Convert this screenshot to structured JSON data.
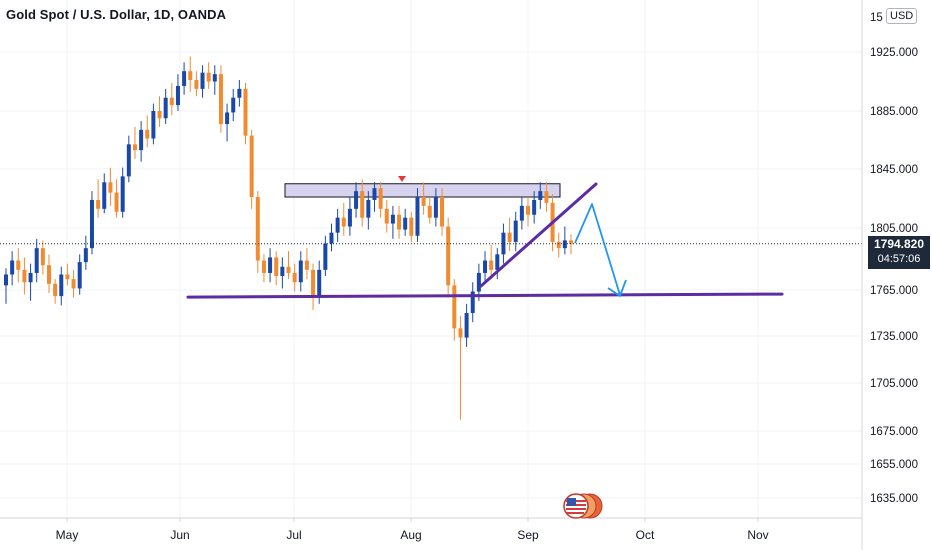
{
  "header": {
    "title": "Gold Spot / U.S. Dollar, 1D, OANDA",
    "currency": "USD",
    "top_price_partial": "15"
  },
  "price_tag": {
    "price": "1794.820",
    "countdown": "04:57:06"
  },
  "colors": {
    "up": "#1a48a8",
    "down": "#f28b30",
    "trendline": "#5b2ca3",
    "projection": "#2196f3",
    "zone_fill": "#d7d3ef",
    "price_line": "#1e2a3a",
    "tag_bg": "#1e2a3a"
  },
  "chart_data": {
    "type": "candlestick",
    "title": "Gold Spot / U.S. Dollar, 1D, OANDA",
    "y_axis": {
      "ticks": [
        "1925.000",
        "1885.000",
        "1845.000",
        "1805.000",
        "1765.000",
        "1735.000",
        "1705.000",
        "1675.000",
        "1655.000",
        "1635.000"
      ],
      "ylim": [
        1620,
        1960
      ],
      "position": "right"
    },
    "x_axis": {
      "ticks": [
        "May",
        "Jun",
        "Jul",
        "Aug",
        "Sep",
        "Oct",
        "Nov"
      ]
    },
    "last_price": 1794.82,
    "resistance_zone": {
      "low": 1826,
      "high": 1835,
      "from": "Jul",
      "to": "Sep"
    },
    "support_level": 1763,
    "rising_trendline": {
      "from_price": 1770,
      "to_price": 1835
    },
    "projection_path": [
      1795,
      1815,
      1763
    ],
    "ohlc": [
      [
        1768,
        1779,
        1756,
        1775
      ],
      [
        1775,
        1790,
        1768,
        1784
      ],
      [
        1784,
        1792,
        1770,
        1778
      ],
      [
        1778,
        1786,
        1762,
        1770
      ],
      [
        1770,
        1782,
        1758,
        1776
      ],
      [
        1776,
        1798,
        1770,
        1792
      ],
      [
        1792,
        1797,
        1775,
        1781
      ],
      [
        1781,
        1788,
        1763,
        1769
      ],
      [
        1769,
        1772,
        1756,
        1761
      ],
      [
        1761,
        1780,
        1755,
        1775
      ],
      [
        1775,
        1782,
        1768,
        1772
      ],
      [
        1772,
        1778,
        1760,
        1766
      ],
      [
        1766,
        1788,
        1762,
        1783
      ],
      [
        1783,
        1800,
        1778,
        1792
      ],
      [
        1792,
        1830,
        1788,
        1824
      ],
      [
        1824,
        1838,
        1812,
        1818
      ],
      [
        1818,
        1842,
        1815,
        1836
      ],
      [
        1836,
        1846,
        1820,
        1829
      ],
      [
        1829,
        1838,
        1812,
        1816
      ],
      [
        1816,
        1846,
        1812,
        1840
      ],
      [
        1840,
        1868,
        1836,
        1862
      ],
      [
        1862,
        1874,
        1852,
        1858
      ],
      [
        1858,
        1878,
        1850,
        1872
      ],
      [
        1872,
        1882,
        1860,
        1866
      ],
      [
        1866,
        1890,
        1862,
        1885
      ],
      [
        1885,
        1895,
        1874,
        1880
      ],
      [
        1880,
        1900,
        1876,
        1894
      ],
      [
        1894,
        1904,
        1882,
        1889
      ],
      [
        1889,
        1910,
        1885,
        1902
      ],
      [
        1902,
        1918,
        1896,
        1912
      ],
      [
        1912,
        1922,
        1898,
        1906
      ],
      [
        1906,
        1912,
        1895,
        1900
      ],
      [
        1900,
        1916,
        1894,
        1911
      ],
      [
        1911,
        1918,
        1900,
        1905
      ],
      [
        1905,
        1916,
        1896,
        1910
      ],
      [
        1910,
        1916,
        1870,
        1876
      ],
      [
        1876,
        1890,
        1864,
        1884
      ],
      [
        1884,
        1900,
        1878,
        1894
      ],
      [
        1894,
        1906,
        1888,
        1900
      ],
      [
        1900,
        1904,
        1862,
        1868
      ],
      [
        1868,
        1872,
        1818,
        1826
      ],
      [
        1826,
        1830,
        1776,
        1784
      ],
      [
        1784,
        1788,
        1770,
        1776
      ],
      [
        1776,
        1792,
        1770,
        1786
      ],
      [
        1786,
        1790,
        1768,
        1774
      ],
      [
        1774,
        1786,
        1766,
        1780
      ],
      [
        1780,
        1790,
        1772,
        1776
      ],
      [
        1776,
        1782,
        1764,
        1770
      ],
      [
        1770,
        1790,
        1764,
        1784
      ],
      [
        1784,
        1792,
        1772,
        1778
      ],
      [
        1778,
        1782,
        1752,
        1760
      ],
      [
        1760,
        1784,
        1756,
        1778
      ],
      [
        1778,
        1800,
        1774,
        1795
      ],
      [
        1795,
        1808,
        1790,
        1802
      ],
      [
        1802,
        1818,
        1796,
        1812
      ],
      [
        1812,
        1822,
        1800,
        1806
      ],
      [
        1806,
        1826,
        1800,
        1818
      ],
      [
        1818,
        1836,
        1812,
        1830
      ],
      [
        1830,
        1838,
        1806,
        1812
      ],
      [
        1812,
        1830,
        1804,
        1824
      ],
      [
        1824,
        1836,
        1816,
        1832
      ],
      [
        1832,
        1836,
        1812,
        1818
      ],
      [
        1818,
        1824,
        1802,
        1808
      ],
      [
        1808,
        1820,
        1798,
        1814
      ],
      [
        1814,
        1820,
        1798,
        1804
      ],
      [
        1804,
        1818,
        1800,
        1812
      ],
      [
        1812,
        1816,
        1796,
        1800
      ],
      [
        1800,
        1832,
        1796,
        1826
      ],
      [
        1826,
        1836,
        1814,
        1820
      ],
      [
        1820,
        1826,
        1808,
        1812
      ],
      [
        1812,
        1832,
        1806,
        1826
      ],
      [
        1826,
        1832,
        1800,
        1806
      ],
      [
        1806,
        1812,
        1760,
        1768
      ],
      [
        1768,
        1772,
        1732,
        1740
      ],
      [
        1740,
        1748,
        1682,
        1734
      ],
      [
        1734,
        1756,
        1728,
        1750
      ],
      [
        1750,
        1770,
        1744,
        1764
      ],
      [
        1764,
        1782,
        1758,
        1776
      ],
      [
        1776,
        1790,
        1770,
        1784
      ],
      [
        1784,
        1794,
        1772,
        1778
      ],
      [
        1778,
        1792,
        1772,
        1788
      ],
      [
        1788,
        1808,
        1782,
        1802
      ],
      [
        1802,
        1812,
        1790,
        1796
      ],
      [
        1796,
        1816,
        1790,
        1810
      ],
      [
        1810,
        1826,
        1804,
        1820
      ],
      [
        1820,
        1826,
        1806,
        1814
      ],
      [
        1814,
        1830,
        1808,
        1824
      ],
      [
        1824,
        1836,
        1818,
        1830
      ],
      [
        1830,
        1836,
        1816,
        1822
      ],
      [
        1822,
        1828,
        1790,
        1796
      ],
      [
        1796,
        1802,
        1786,
        1792
      ],
      [
        1792,
        1806,
        1788,
        1797
      ],
      [
        1797,
        1801,
        1788,
        1794.82
      ]
    ]
  }
}
